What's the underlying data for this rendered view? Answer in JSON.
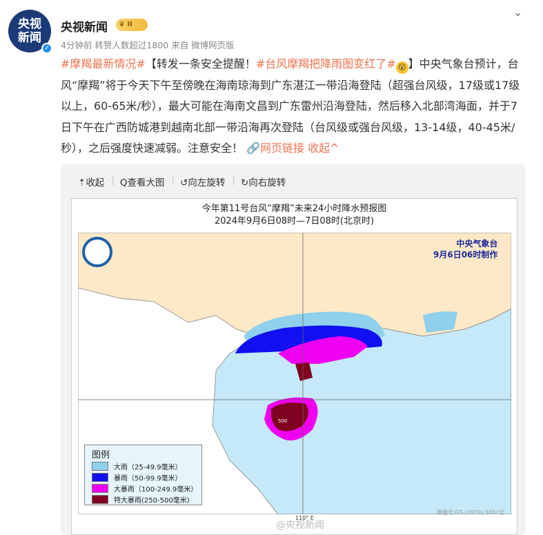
{
  "post": {
    "avatar_text": "央视新闻",
    "author": "央视新闻",
    "badge": "II",
    "meta": "4分钟前 转赞人数超过1800  来自 微博网页版",
    "text": {
      "tag1": "#摩羯最新情况#",
      "part1": "【转发一条安全提醒！",
      "tag2": "#台风摩羯把降雨图变红了#",
      "emoji": "😲",
      "part2": "】中央气象台预计，台风“摩羯”将于今天下午至傍晚在海南琼海到广东湛江一带沿海登陆（超强台风级，17级或17级以上，60-65米/秒），最大可能在海南文昌到广东雷州沿海登陆，然后移入北部湾海面，并于7日下午在广西防城港到越南北部一带沿海再次登陆（台风级或强台风级，13-14级，40-45米/秒），之后强度快速减弱。注意安全！",
      "link": "网页链接",
      "collapse": "收起"
    }
  },
  "toolbar": {
    "collapse": "收起",
    "view_large": "查看大图",
    "rotate_left": "向左旋转",
    "rotate_right": "向右旋转"
  },
  "map": {
    "title": "今年第11号台风“摩羯”未来24小时降水预报图",
    "subtitle": "2024年9月6日08时—7日08时(北京时)",
    "agency": "中央气象台",
    "issued": "9月6日06时制作",
    "peak_label": "500",
    "longitude_label": "110° E",
    "map_approval": "审图号:GS (2019) 3082号",
    "watermark": "@央视新闻",
    "legend": {
      "title": "图例",
      "items": [
        {
          "label": "大雨（25-49.9毫米）",
          "color": "#8fd0ec"
        },
        {
          "label": "暴雨（50-99.9毫米）",
          "color": "#1010f0"
        },
        {
          "label": "大暴雨（100-249.9毫米）",
          "color": "#f000f0"
        },
        {
          "label": "特大暴雨(250-500毫米)",
          "color": "#800020"
        }
      ]
    }
  },
  "colors": {
    "tag": "#eb7350",
    "sea": "#c5e9f8",
    "land_china": "#fde9c8",
    "land_other": "#ffffff"
  }
}
